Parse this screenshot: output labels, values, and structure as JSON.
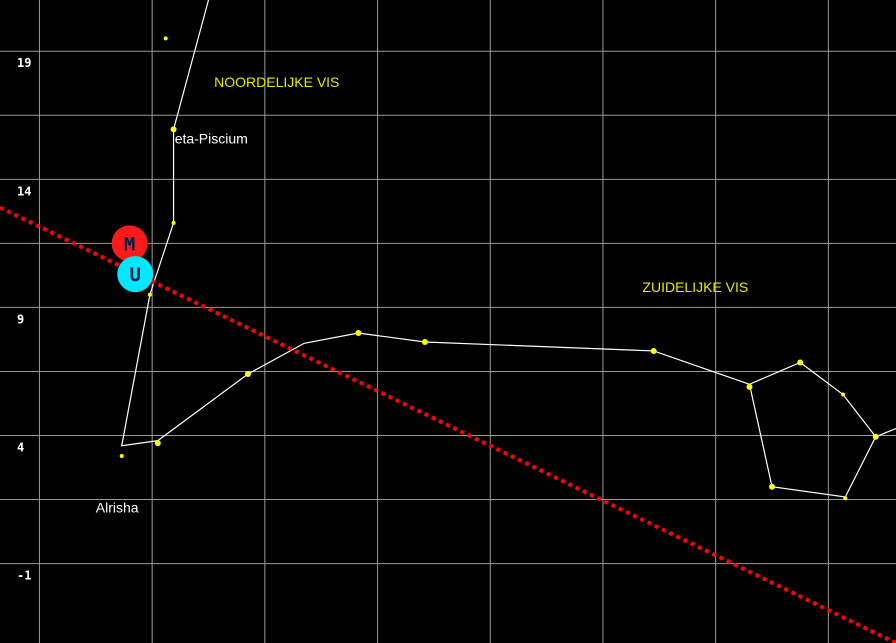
{
  "chart_data": {
    "type": "scatter",
    "y_ticks": [
      "19",
      "14",
      "9",
      "4",
      "-1"
    ],
    "y_tick_values": [
      19,
      14,
      9,
      4,
      -1
    ],
    "y_range": [
      -4.1,
      21
    ],
    "x_range": [
      -0.35,
      7.6
    ],
    "constellation_labels": [
      {
        "text": "NOORDELIJKE VIS",
        "x": 1.55,
        "y": 17.6
      },
      {
        "text": "ZUIDELIJKE VIS",
        "x": 5.35,
        "y": 9.6
      }
    ],
    "star_labels": [
      {
        "text": "eta-Piscium",
        "x": 1.2,
        "y": 15.4
      },
      {
        "text": "Alrisha",
        "x": 0.5,
        "y": 1.0
      }
    ],
    "stars": [
      {
        "x": 1.12,
        "y": 19.5,
        "size": 2
      },
      {
        "x": 1.19,
        "y": 15.95,
        "size": 3
      },
      {
        "x": 1.19,
        "y": 12.3,
        "size": 2
      },
      {
        "x": 0.98,
        "y": 9.5,
        "size": 2
      },
      {
        "x": 0.73,
        "y": 3.2,
        "size": 2
      },
      {
        "x": 1.05,
        "y": 3.7,
        "size": 3
      },
      {
        "x": 1.85,
        "y": 6.4,
        "size": 3
      },
      {
        "x": 2.83,
        "y": 8.0,
        "size": 3
      },
      {
        "x": 3.42,
        "y": 7.65,
        "size": 3
      },
      {
        "x": 5.45,
        "y": 7.3,
        "size": 3
      },
      {
        "x": 6.3,
        "y": 5.9,
        "size": 3
      },
      {
        "x": 6.75,
        "y": 6.85,
        "size": 3
      },
      {
        "x": 7.13,
        "y": 5.6,
        "size": 2
      },
      {
        "x": 7.42,
        "y": 3.95,
        "size": 3
      },
      {
        "x": 6.5,
        "y": 2.0,
        "size": 3
      },
      {
        "x": 7.15,
        "y": 1.55,
        "size": 2
      },
      {
        "x": 7.95,
        "y": 4.9,
        "size": 3
      }
    ],
    "constellation_lines": [
      [
        [
          1.5,
          21.0
        ],
        [
          1.19,
          15.95
        ],
        [
          1.19,
          12.3
        ],
        [
          0.98,
          9.5
        ],
        [
          0.73,
          3.6
        ],
        [
          1.05,
          3.8
        ],
        [
          1.85,
          6.4
        ],
        [
          2.35,
          7.6
        ],
        [
          2.83,
          8.0
        ],
        [
          3.42,
          7.65
        ],
        [
          5.45,
          7.3
        ],
        [
          6.3,
          6.0
        ],
        [
          6.75,
          6.85
        ],
        [
          7.13,
          5.6
        ],
        [
          7.42,
          3.95
        ],
        [
          7.95,
          4.9
        ]
      ],
      [
        [
          6.3,
          6.0
        ],
        [
          6.5,
          2.0
        ],
        [
          7.15,
          1.6
        ],
        [
          7.42,
          3.95
        ]
      ]
    ],
    "ecliptic": [
      [
        -0.35,
        12.9
      ],
      [
        7.6,
        -4.1
      ]
    ],
    "markers": [
      {
        "letter": "M",
        "x": 0.8,
        "y": 11.5,
        "color": "#ff1a1a"
      },
      {
        "letter": "U",
        "x": 0.85,
        "y": 10.3,
        "color": "#00e8ff"
      }
    ],
    "colors": {
      "background": "#000000",
      "grid": "#9a9a9a",
      "stars": "#ffff00",
      "lines": "#ffffff",
      "ecliptic": "#ff0000",
      "constellation_text": "#e8e800"
    }
  }
}
